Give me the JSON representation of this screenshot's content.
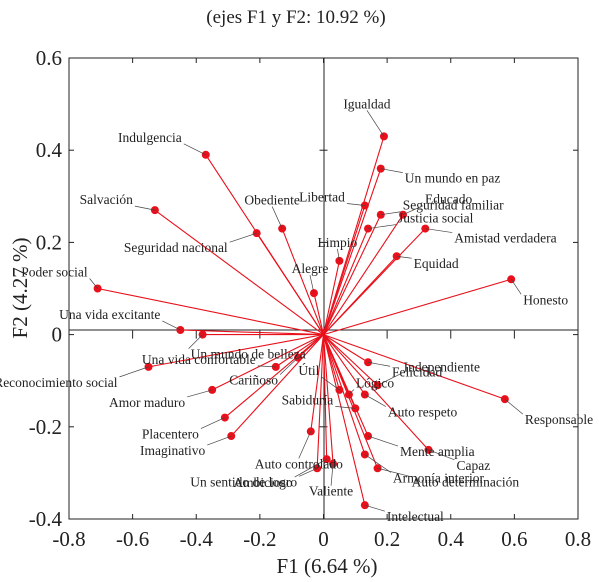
{
  "chart_data": {
    "type": "scatter",
    "subtype": "biplot",
    "title": "(ejes F1 y F2: 10.92 %)",
    "xlabel": "F1 (6.64 %)",
    "ylabel": "F2 (4.27 %)",
    "xlim": [
      -0.8,
      0.8
    ],
    "ylim": [
      -0.4,
      0.6
    ],
    "xticks": [
      "-0.8",
      "-0.6",
      "-0.4",
      "-0.2",
      "0",
      "0.2",
      "0.4",
      "0.6",
      "0.8"
    ],
    "yticks": [
      "-0.4",
      "-0.2",
      "0",
      "0.2",
      "0.4",
      "0.6"
    ],
    "grid": false,
    "colors": {
      "vector": "#e8101b",
      "text": "#222222"
    },
    "points": [
      {
        "label": "Igualdad",
        "x": 0.19,
        "y": 0.43
      },
      {
        "label": "Un mundo en paz",
        "x": 0.18,
        "y": 0.36
      },
      {
        "label": "Indulgencia",
        "x": -0.37,
        "y": 0.39
      },
      {
        "label": "Libertad",
        "x": 0.13,
        "y": 0.28
      },
      {
        "label": "Seguridad familiar",
        "x": 0.18,
        "y": 0.26
      },
      {
        "label": "Educado",
        "x": 0.25,
        "y": 0.26
      },
      {
        "label": "Salvación",
        "x": -0.53,
        "y": 0.27
      },
      {
        "label": "Obediente",
        "x": -0.13,
        "y": 0.23
      },
      {
        "label": "Seguridad nacional",
        "x": -0.21,
        "y": 0.22
      },
      {
        "label": "Limpio",
        "x": 0.05,
        "y": 0.16
      },
      {
        "label": "Justicia social",
        "x": 0.14,
        "y": 0.23
      },
      {
        "label": "Amistad verdadera",
        "x": 0.32,
        "y": 0.23
      },
      {
        "label": "Equidad",
        "x": 0.23,
        "y": 0.17
      },
      {
        "label": "Alegre",
        "x": -0.03,
        "y": 0.09
      },
      {
        "label": "Poder social",
        "x": -0.71,
        "y": 0.1
      },
      {
        "label": "Honesto",
        "x": 0.59,
        "y": 0.12
      },
      {
        "label": "Una vida excitante",
        "x": -0.45,
        "y": 0.01
      },
      {
        "label": "Un mundo de belleza",
        "x": -0.38,
        "y": 0.0
      },
      {
        "label": "Felicidad",
        "x": 0.14,
        "y": -0.06
      },
      {
        "label": "Reconocimiento social",
        "x": -0.55,
        "y": -0.07
      },
      {
        "label": "Una vida confortable",
        "x": -0.15,
        "y": -0.07
      },
      {
        "label": "Cariñoso",
        "x": -0.08,
        "y": -0.05
      },
      {
        "label": "Independiente",
        "x": 0.17,
        "y": -0.11
      },
      {
        "label": "Amor maduro",
        "x": -0.35,
        "y": -0.12
      },
      {
        "label": "Responsable",
        "x": 0.57,
        "y": -0.14
      },
      {
        "label": "Lógico",
        "x": 0.08,
        "y": -0.13
      },
      {
        "label": "Útil",
        "x": 0.05,
        "y": -0.12
      },
      {
        "label": "Auto respeto",
        "x": 0.13,
        "y": -0.13
      },
      {
        "label": "Placentero",
        "x": -0.31,
        "y": -0.18
      },
      {
        "label": "Sabiduría",
        "x": 0.1,
        "y": -0.16
      },
      {
        "label": "Auto controlado",
        "x": -0.04,
        "y": -0.21
      },
      {
        "label": "Mente amplia",
        "x": 0.14,
        "y": -0.22
      },
      {
        "label": "Imaginativo",
        "x": -0.29,
        "y": -0.22
      },
      {
        "label": "Capaz",
        "x": 0.33,
        "y": -0.25
      },
      {
        "label": "Ambicioso",
        "x": 0.01,
        "y": -0.27
      },
      {
        "label": "Armonía interior",
        "x": 0.13,
        "y": -0.26
      },
      {
        "label": "Un sentido de logro",
        "x": -0.02,
        "y": -0.29
      },
      {
        "label": "Valiente",
        "x": 0.03,
        "y": -0.28
      },
      {
        "label": "Auto determinación",
        "x": 0.17,
        "y": -0.29
      },
      {
        "label": "Intelectual",
        "x": 0.13,
        "y": -0.37
      }
    ]
  }
}
